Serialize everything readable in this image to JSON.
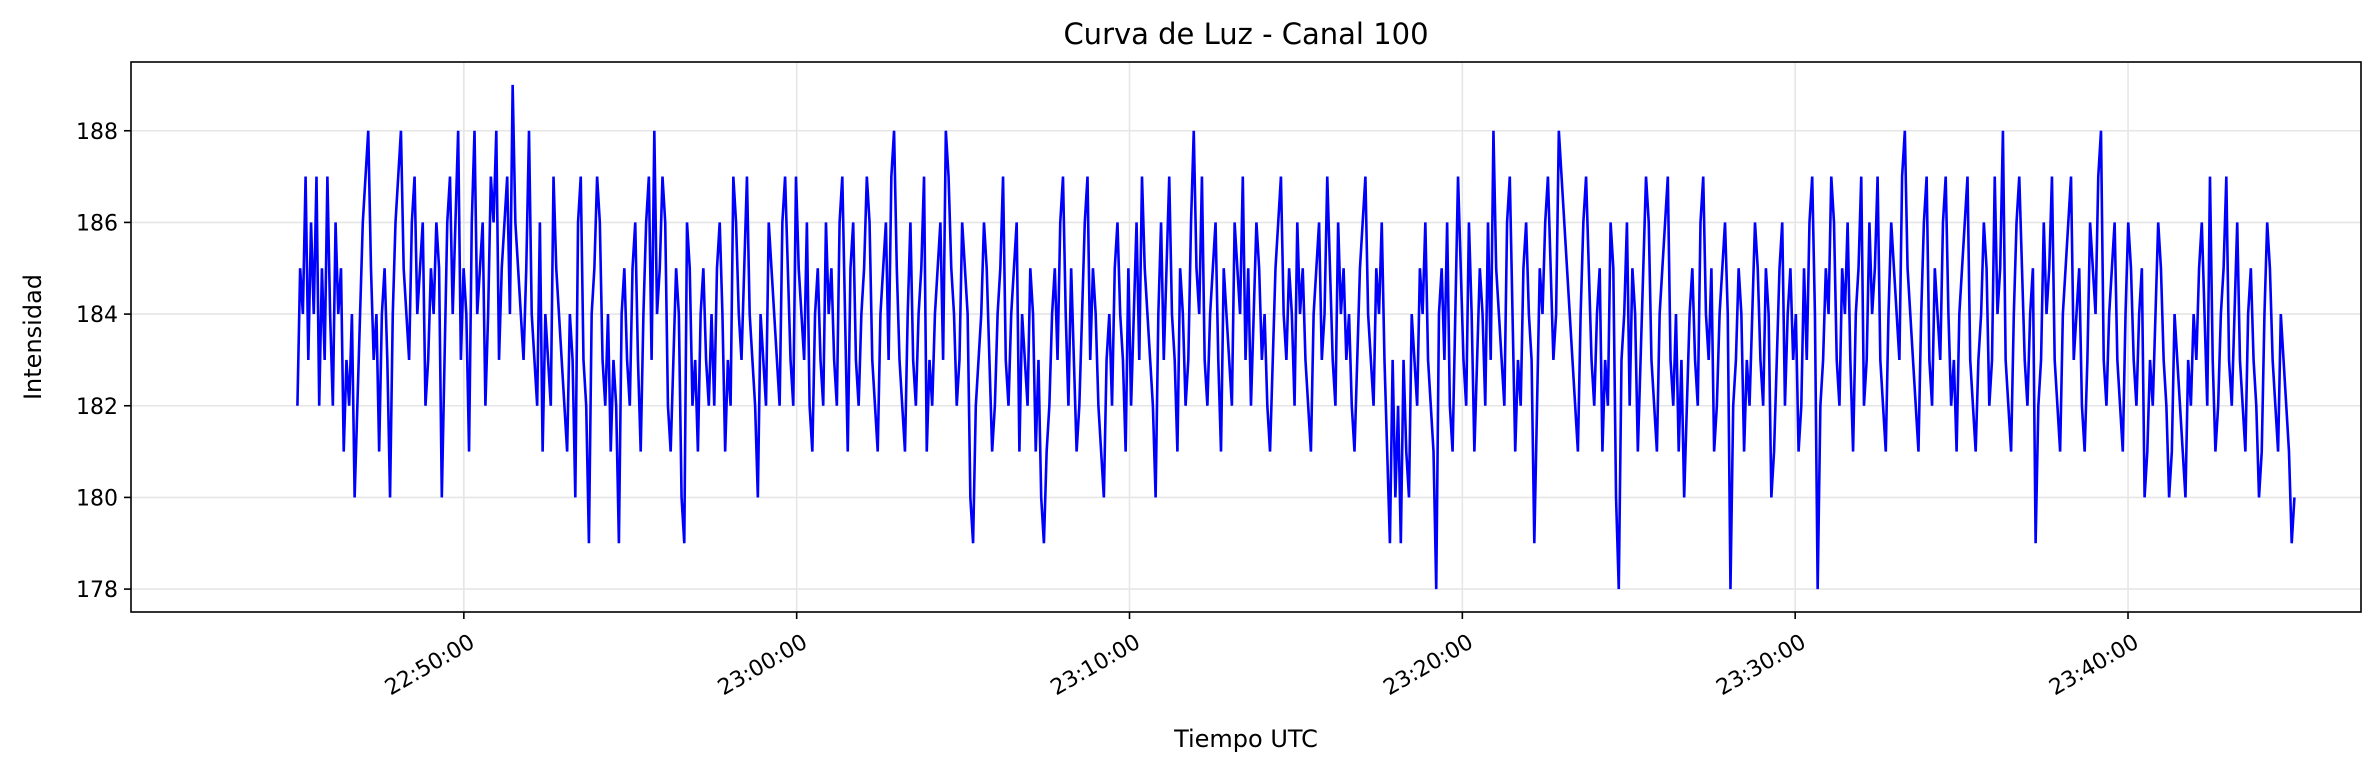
{
  "chart_data": {
    "type": "line",
    "title": "Curva de Luz - Canal 100",
    "xlabel": "Tiempo UTC",
    "ylabel": "Intensidad",
    "x_start": "22:45:00",
    "x_end": "23:45:00",
    "xlim": [
      "22:40:00",
      "23:47:00"
    ],
    "ylim": [
      177.5,
      189.5
    ],
    "x_ticks": [
      "22:50:00",
      "23:00:00",
      "23:10:00",
      "23:20:00",
      "23:30:00",
      "23:40:00"
    ],
    "y_ticks": [
      178,
      180,
      182,
      184,
      186,
      188
    ],
    "grid": true,
    "legend": "none",
    "series": [
      {
        "color": "#0000ff",
        "values": [
          182,
          185,
          184,
          187,
          183,
          186,
          184,
          187,
          182,
          185,
          183,
          187,
          184,
          182,
          186,
          184,
          185,
          181,
          183,
          182,
          184,
          180,
          182,
          184,
          186,
          187,
          188,
          185,
          183,
          184,
          181,
          184,
          185,
          183,
          180,
          184,
          186,
          187,
          188,
          185,
          184,
          183,
          186,
          187,
          184,
          185,
          186,
          182,
          183,
          185,
          184,
          186,
          185,
          180,
          183,
          186,
          187,
          184,
          186,
          188,
          183,
          185,
          184,
          181,
          186,
          188,
          184,
          185,
          186,
          182,
          184,
          187,
          186,
          188,
          183,
          185,
          186,
          187,
          184,
          189,
          186,
          185,
          184,
          183,
          185,
          188,
          184,
          183,
          182,
          186,
          181,
          184,
          183,
          182,
          187,
          185,
          184,
          183,
          182,
          181,
          184,
          183,
          180,
          186,
          187,
          183,
          182,
          179,
          184,
          185,
          187,
          186,
          183,
          182,
          184,
          181,
          183,
          182,
          179,
          184,
          185,
          183,
          182,
          185,
          186,
          183,
          181,
          184,
          186,
          187,
          183,
          188,
          184,
          185,
          187,
          186,
          182,
          181,
          183,
          185,
          184,
          180,
          179,
          186,
          185,
          182,
          183,
          181,
          184,
          185,
          183,
          182,
          184,
          182,
          185,
          186,
          184,
          181,
          183,
          182,
          187,
          186,
          184,
          183,
          185,
          187,
          184,
          183,
          182,
          180,
          184,
          183,
          182,
          186,
          185,
          184,
          183,
          182,
          186,
          187,
          185,
          183,
          182,
          187,
          185,
          184,
          183,
          186,
          182,
          181,
          184,
          185,
          183,
          182,
          186,
          184,
          185,
          183,
          182,
          186,
          187,
          184,
          181,
          185,
          186,
          183,
          182,
          184,
          185,
          187,
          186,
          183,
          182,
          181,
          184,
          185,
          186,
          183,
          187,
          188,
          185,
          183,
          182,
          181,
          184,
          186,
          183,
          182,
          184,
          185,
          187,
          181,
          183,
          182,
          184,
          185,
          186,
          183,
          188,
          187,
          185,
          184,
          182,
          183,
          186,
          185,
          184,
          180,
          179,
          182,
          183,
          184,
          186,
          185,
          183,
          181,
          182,
          184,
          185,
          187,
          183,
          182,
          184,
          185,
          186,
          181,
          184,
          183,
          182,
          185,
          184,
          181,
          183,
          180,
          179,
          181,
          182,
          184,
          185,
          183,
          186,
          187,
          184,
          182,
          185,
          183,
          181,
          182,
          184,
          186,
          187,
          183,
          185,
          184,
          182,
          181,
          180,
          183,
          184,
          182,
          185,
          186,
          184,
          183,
          181,
          185,
          182,
          184,
          186,
          183,
          187,
          185,
          184,
          183,
          182,
          180,
          184,
          186,
          183,
          185,
          187,
          184,
          183,
          181,
          185,
          184,
          182,
          183,
          186,
          188,
          185,
          184,
          187,
          183,
          182,
          184,
          185,
          186,
          183,
          181,
          185,
          184,
          183,
          182,
          186,
          185,
          184,
          187,
          183,
          185,
          182,
          184,
          186,
          185,
          183,
          184,
          182,
          181,
          183,
          185,
          186,
          187,
          184,
          183,
          185,
          184,
          182,
          186,
          184,
          185,
          183,
          182,
          181,
          184,
          185,
          186,
          183,
          184,
          187,
          185,
          183,
          182,
          186,
          184,
          185,
          183,
          184,
          182,
          181,
          183,
          185,
          186,
          187,
          184,
          183,
          182,
          185,
          184,
          186,
          183,
          181,
          179,
          183,
          180,
          182,
          179,
          183,
          181,
          180,
          184,
          183,
          182,
          185,
          184,
          186,
          183,
          182,
          181,
          178,
          184,
          185,
          183,
          186,
          182,
          181,
          184,
          187,
          185,
          183,
          182,
          186,
          184,
          181,
          183,
          185,
          184,
          182,
          186,
          183,
          188,
          185,
          184,
          183,
          182,
          186,
          187,
          184,
          181,
          183,
          182,
          185,
          186,
          184,
          183,
          179,
          182,
          185,
          184,
          186,
          187,
          185,
          183,
          184,
          188,
          187,
          186,
          185,
          184,
          183,
          182,
          181,
          184,
          186,
          187,
          185,
          183,
          182,
          184,
          185,
          181,
          183,
          182,
          186,
          185,
          180,
          178,
          183,
          184,
          186,
          182,
          185,
          184,
          181,
          183,
          185,
          187,
          186,
          183,
          182,
          181,
          184,
          185,
          186,
          187,
          183,
          182,
          184,
          181,
          183,
          180,
          182,
          184,
          185,
          183,
          182,
          186,
          187,
          184,
          183,
          185,
          181,
          182,
          184,
          185,
          186,
          184,
          178,
          182,
          183,
          185,
          184,
          181,
          183,
          182,
          184,
          186,
          185,
          183,
          182,
          185,
          184,
          180,
          181,
          183,
          185,
          186,
          182,
          184,
          185,
          183,
          184,
          181,
          182,
          185,
          183,
          186,
          187,
          184,
          178,
          182,
          183,
          185,
          184,
          187,
          186,
          183,
          182,
          185,
          184,
          186,
          183,
          181,
          184,
          185,
          187,
          182,
          183,
          186,
          184,
          185,
          187,
          183,
          182,
          181,
          184,
          186,
          185,
          184,
          183,
          187,
          188,
          185,
          184,
          183,
          182,
          181,
          184,
          186,
          187,
          183,
          182,
          185,
          184,
          183,
          186,
          187,
          184,
          182,
          183,
          181,
          184,
          185,
          186,
          187,
          183,
          182,
          181,
          183,
          184,
          186,
          185,
          182,
          183,
          187,
          184,
          185,
          188,
          183,
          182,
          181,
          184,
          186,
          187,
          185,
          183,
          182,
          184,
          185,
          179,
          182,
          183,
          186,
          184,
          185,
          187,
          183,
          182,
          181,
          184,
          185,
          186,
          187,
          183,
          184,
          185,
          182,
          181,
          183,
          186,
          185,
          184,
          187,
          188,
          183,
          182,
          184,
          185,
          186,
          183,
          182,
          181,
          184,
          186,
          185,
          183,
          182,
          184,
          185,
          180,
          181,
          183,
          182,
          184,
          186,
          185,
          183,
          182,
          180,
          181,
          184,
          183,
          182,
          181,
          180,
          183,
          182,
          184,
          183,
          185,
          186,
          184,
          182,
          187,
          183,
          181,
          182,
          184,
          185,
          187,
          183,
          182,
          184,
          186,
          183,
          182,
          181,
          184,
          185,
          183,
          182,
          180,
          181,
          184,
          186,
          185,
          183,
          182,
          181,
          184,
          183,
          182,
          181,
          179,
          180
        ]
      }
    ]
  }
}
